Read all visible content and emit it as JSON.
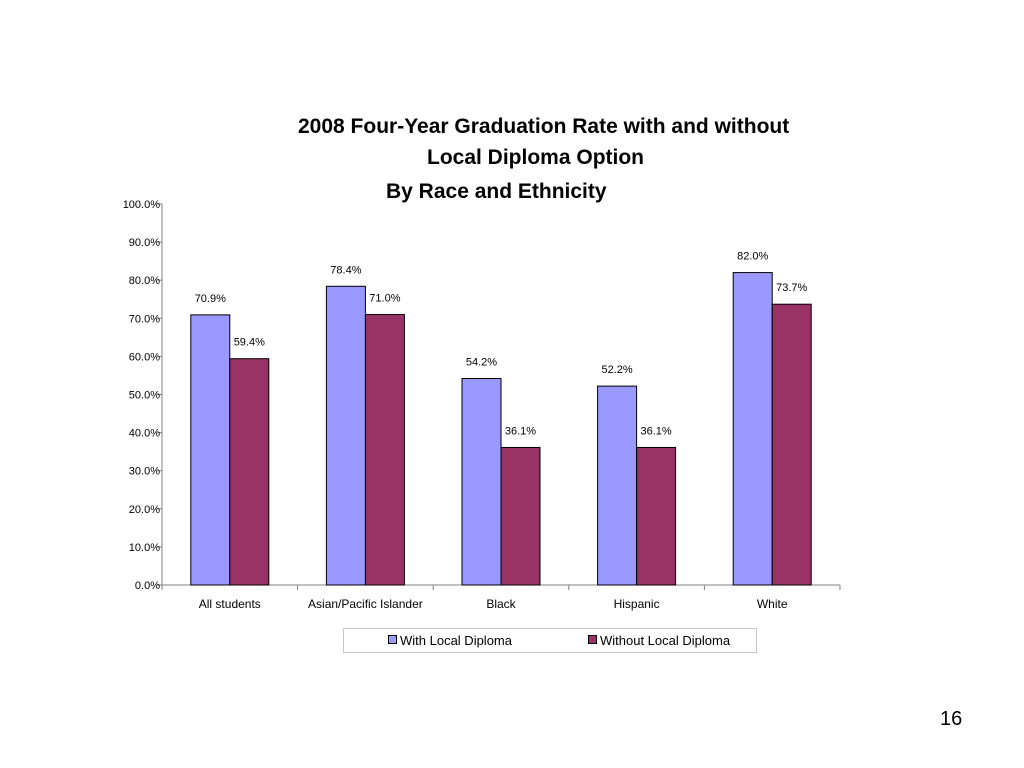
{
  "colors": {
    "with": "#9999ff",
    "without": "#993366",
    "axis": "#808080",
    "background": "#ffffff"
  },
  "page_number": "16",
  "chart_data": {
    "type": "bar",
    "title_lines": [
      "2008 Four-Year Graduation Rate with and without",
      "Local Diploma Option"
    ],
    "subtitle": "By Race and Ethnicity",
    "categories": [
      "All students",
      "Asian/Pacific Islander",
      "Black",
      "Hispanic",
      "White"
    ],
    "series": [
      {
        "name": "With Local Diploma",
        "values": [
          70.9,
          78.4,
          54.2,
          52.2,
          82.0
        ],
        "labels": [
          "70.9%",
          "78.4%",
          "54.2%",
          "52.2%",
          "82.0%"
        ]
      },
      {
        "name": "Without Local Diploma",
        "values": [
          59.4,
          71.0,
          36.1,
          36.1,
          73.7
        ],
        "labels": [
          "59.4%",
          "71.0%",
          "36.1%",
          "36.1%",
          "73.7%"
        ]
      }
    ],
    "ylim": [
      0,
      100
    ],
    "yticks": [
      "0.0%",
      "10.0%",
      "20.0%",
      "30.0%",
      "40.0%",
      "50.0%",
      "60.0%",
      "70.0%",
      "80.0%",
      "90.0%",
      "100.0%"
    ],
    "xlabel": "",
    "ylabel": "",
    "grid": false,
    "legend_position": "bottom"
  }
}
